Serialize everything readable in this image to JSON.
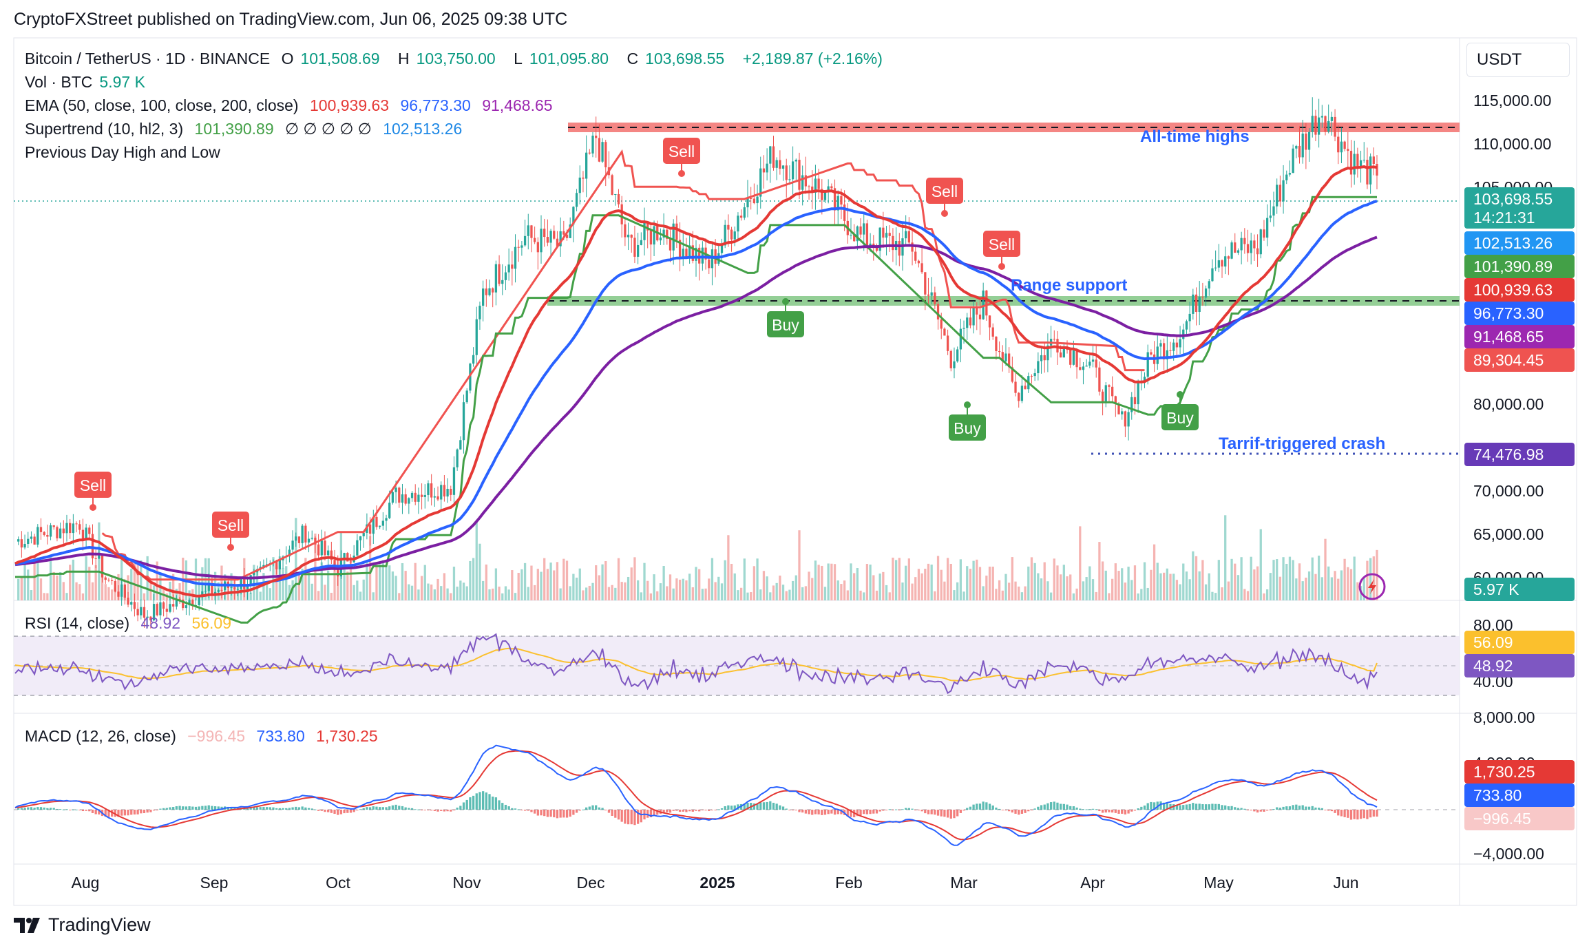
{
  "header": {
    "published": "CryptoFXStreet published on TradingView.com, Jun 06, 2025 09:38 UTC"
  },
  "legend": {
    "symbol": "Bitcoin / TetherUS · 1D · BINANCE",
    "open_label": "O",
    "open": "101,508.69",
    "high_label": "H",
    "high": "103,750.00",
    "low_label": "L",
    "low": "101,095.80",
    "close_label": "C",
    "close": "103,698.55",
    "change": "+2,189.87 (+2.16%)",
    "vol_label": "Vol · BTC",
    "vol": "5.97 K",
    "ema_label": "EMA (50, close, 100, close, 200, close)",
    "ema50": "100,939.63",
    "ema100": "96,773.30",
    "ema200": "91,468.65",
    "st_label": "Supertrend (10, hl2, 3)",
    "st_up": "101,390.89",
    "st_empties": "∅ ∅ ∅ ∅ ∅",
    "st_down": "102,513.26",
    "pdhl_label": "Previous Day High and Low",
    "rsi_label": "RSI (14, close)",
    "rsi": "48.92",
    "rsi_ma": "56.09",
    "macd_label": "MACD (12, 26, close)",
    "macd_hist": "−996.45",
    "macd": "733.80",
    "macd_signal": "1,730.25"
  },
  "currency": "USDT",
  "price_axis": {
    "ticks": [
      "115,000.00",
      "110,000.00",
      "105,000.00",
      "80,000.00",
      "70,000.00",
      "65,000.00",
      "60,000.00"
    ],
    "tags": [
      {
        "label": "103,698.55",
        "sub": "14:21:31",
        "color": "#26a69a"
      },
      {
        "label": "102,513.26",
        "color": "#2196f3"
      },
      {
        "label": "101,390.89",
        "color": "#43a047"
      },
      {
        "label": "100,939.63",
        "color": "#e53935"
      },
      {
        "label": "96,773.30",
        "color": "#2962ff"
      },
      {
        "label": "91,468.65",
        "color": "#9c27b0"
      },
      {
        "label": "89,304.45",
        "color": "#ef5350"
      },
      {
        "label": "74,476.98",
        "color": "#673ab7"
      },
      {
        "label": "5.97 K",
        "color": "#26a69a"
      }
    ]
  },
  "rsi_axis": {
    "ticks": [
      "80.00",
      "40.00"
    ],
    "tags": [
      {
        "label": "56.09",
        "color": "#fbc02d"
      },
      {
        "label": "48.92",
        "color": "#7e57c2"
      }
    ]
  },
  "macd_axis": {
    "ticks": [
      "8,000.00",
      "4,000.00",
      "−4,000.00"
    ],
    "tags": [
      {
        "label": "1,730.25",
        "color": "#e53935"
      },
      {
        "label": "733.80",
        "color": "#2962ff"
      },
      {
        "label": "−996.45",
        "color": "#f8c8c8"
      }
    ]
  },
  "time_axis": [
    "Aug",
    "Sep",
    "Oct",
    "Nov",
    "Dec",
    "2025",
    "Feb",
    "Mar",
    "Apr",
    "May",
    "Jun"
  ],
  "annotations": {
    "ath": "All-time highs",
    "range": "Range support",
    "crash": "Tarrif-triggered crash"
  },
  "signals": {
    "sell": "Sell",
    "buy": "Buy"
  },
  "footer": {
    "brand": "TradingView"
  },
  "chart_data": {
    "type": "line",
    "x": [
      "Aug",
      "Sep",
      "Oct",
      "Nov",
      "Dec",
      "2025",
      "Feb",
      "Mar",
      "Apr",
      "May",
      "Jun"
    ],
    "series": [
      {
        "name": "Bitcoin / TetherUS",
        "values": [
          65000,
          58000,
          62000,
          69000,
          97000,
          96000,
          102000,
          84000,
          83000,
          95000,
          103698
        ]
      },
      {
        "name": "EMA 50",
        "values": [
          63000,
          60000,
          60500,
          64000,
          88000,
          97000,
          100000,
          92000,
          84000,
          92000,
          100939
        ]
      },
      {
        "name": "EMA 100",
        "values": [
          62000,
          60500,
          60000,
          62000,
          79000,
          91000,
          97000,
          92000,
          87000,
          90000,
          96773
        ]
      },
      {
        "name": "EMA 200",
        "values": [
          60000,
          60000,
          60000,
          61000,
          71000,
          82000,
          89000,
          90000,
          88000,
          88500,
          91468
        ]
      }
    ],
    "ylim": [
      57000,
      117000
    ],
    "levels": {
      "all_time_high": 111500,
      "range_support": 96500,
      "crash_low": 74476.98
    },
    "rsi": {
      "ylim": [
        20,
        90
      ],
      "upper": 70,
      "lower": 30,
      "rsi": 48.92,
      "rsi_ma": 56.09
    },
    "macd": {
      "macd": 733.8,
      "signal": 1730.25,
      "hist": -996.45
    }
  }
}
